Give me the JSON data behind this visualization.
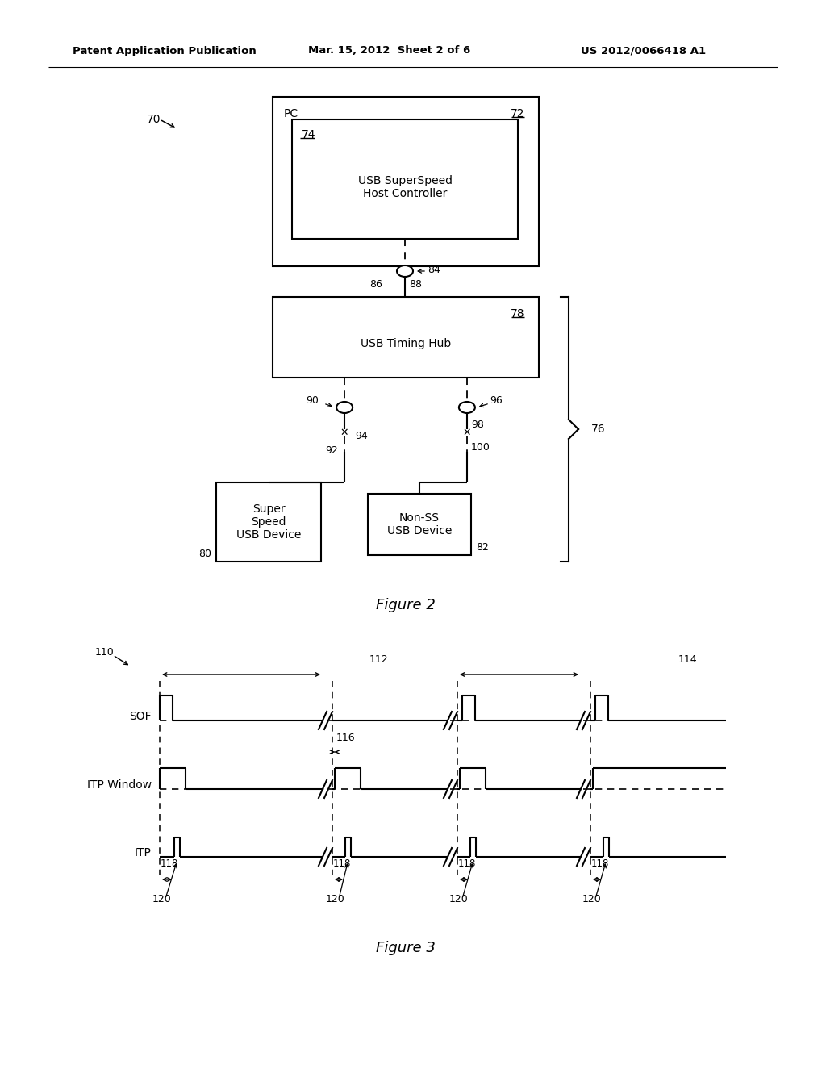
{
  "bg_color": "#ffffff",
  "header_left": "Patent Application Publication",
  "header_mid": "Mar. 15, 2012  Sheet 2 of 6",
  "header_right": "US 2012/0066418 A1",
  "fig2_caption": "Figure 2",
  "fig3_caption": "Figure 3",
  "label_70": "70",
  "label_72": "72",
  "label_74": "74",
  "label_76": "76",
  "label_78": "78",
  "label_80": "80",
  "label_82": "82",
  "label_84": "84",
  "label_86": "86",
  "label_88": "88",
  "label_90": "90",
  "label_92": "92",
  "label_94": "94",
  "label_96": "96",
  "label_98": "98",
  "label_100": "100",
  "label_110": "110",
  "label_112": "112",
  "label_114": "114",
  "label_116": "116",
  "label_118": "118",
  "label_120": "120",
  "text_PC": "PC",
  "text_74_inner": "USB SuperSpeed\nHost Controller",
  "text_78_inner": "USB Timing Hub",
  "text_80_inner": "Super\nSpeed\nUSB Device",
  "text_82_inner": "Non-SS\nUSB Device",
  "text_SOF": "SOF",
  "text_ITPWindow": "ITP Window",
  "text_ITP": "ITP"
}
